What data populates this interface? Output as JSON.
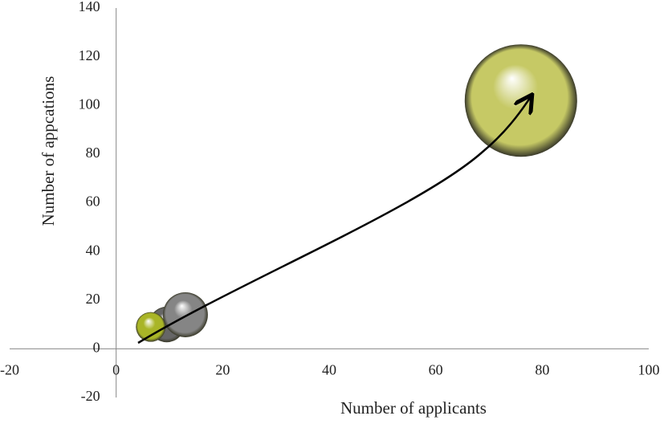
{
  "chart_data": {
    "type": "bubble",
    "x_label": "Number of applicants",
    "y_label": "Number of appcations",
    "x": [
      76,
      9.5,
      6.5,
      13
    ],
    "values": [
      102,
      10,
      9,
      14
    ],
    "sizes": [
      100,
      10,
      7,
      16
    ],
    "colors": [
      "#c6c965",
      "#666666",
      "#a9b527",
      "#858585"
    ],
    "xlim": [
      -20,
      100
    ],
    "xticks": [
      -20,
      0,
      20,
      40,
      60,
      80,
      100
    ],
    "ylim": [
      -20,
      140
    ],
    "yticks": [
      -20,
      0,
      20,
      40,
      60,
      80,
      100,
      120,
      140
    ],
    "grid": false
  }
}
